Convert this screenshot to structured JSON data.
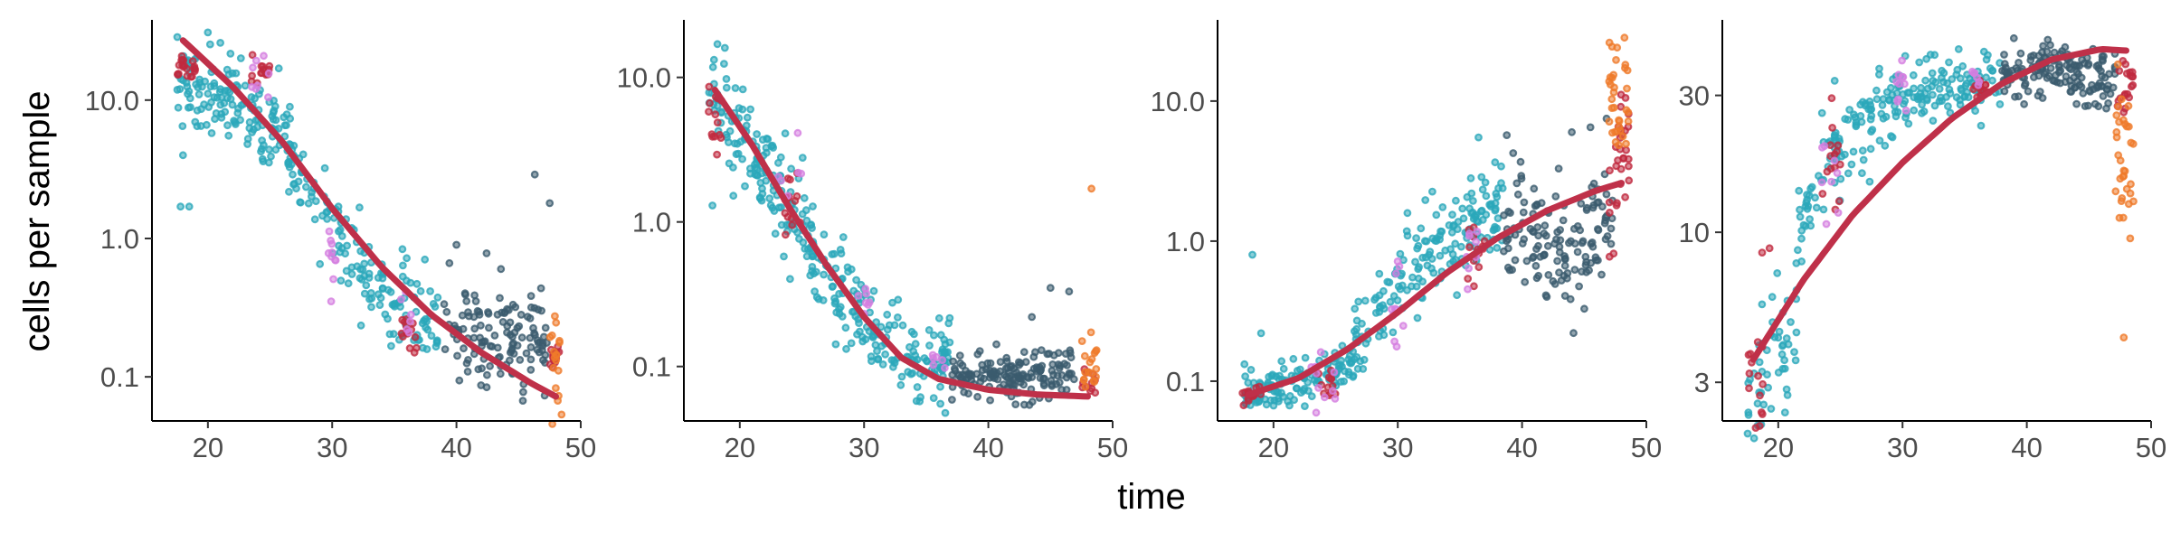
{
  "figure": {
    "xlabel": "time",
    "ylabel": "cells per sample"
  },
  "palette": {
    "teal": "#2aa7ba",
    "slate": "#3b5b6e",
    "crimson": "#c0293f",
    "orange": "#ef7a2a",
    "orchid": "#d57ee0",
    "fit": "#bf3049"
  },
  "chart_data": [
    {
      "type": "scatter",
      "scale_y": "log10",
      "xlim": [
        15.5,
        50
      ],
      "ylim": [
        0.048,
        38
      ],
      "x_ticks": [
        20,
        30,
        40,
        50
      ],
      "y_ticks": [
        0.1,
        1.0,
        10.0
      ],
      "y_tick_labels": [
        "0.1",
        "1.0",
        "10.0"
      ],
      "grid": false,
      "legend": "none",
      "point_groups": [
        {
          "x_range": [
            17.5,
            27
          ],
          "center": [
            14,
            12,
            9,
            6.5,
            4.8
          ],
          "spread": 0.16,
          "n": 150,
          "color": "teal",
          "outliers": [
            [
              17.8,
              1.7
            ],
            [
              18.5,
              1.7
            ],
            [
              18,
              4.0
            ]
          ]
        },
        {
          "x_range": [
            26,
            38.5
          ],
          "center": [
            4.2,
            2.2,
            0.9,
            0.45,
            0.3,
            0.22
          ],
          "spread": 0.17,
          "n": 150,
          "color": "teal"
        },
        {
          "x_range": [
            39,
            47.5
          ],
          "center": [
            0.22,
            0.2,
            0.18,
            0.16
          ],
          "spread": 0.18,
          "n": 130,
          "color": "slate",
          "outliers": [
            [
              46.3,
              2.9
            ],
            [
              47.5,
              1.8
            ],
            [
              40,
              0.9
            ]
          ]
        },
        {
          "x_range": [
            17.5,
            19
          ],
          "center": [
            17,
            17
          ],
          "spread": 0.06,
          "n": 20,
          "color": "crimson"
        },
        {
          "x_range": [
            23.5,
            25
          ],
          "center": [
            15,
            15
          ],
          "spread": 0.06,
          "n": 14,
          "color": "crimson"
        },
        {
          "x_range": [
            35.5,
            37
          ],
          "center": [
            0.22,
            0.22
          ],
          "spread": 0.07,
          "n": 14,
          "color": "crimson"
        },
        {
          "x_range": [
            47.5,
            48.5
          ],
          "center": [
            0.14,
            0.14
          ],
          "spread": 0.08,
          "n": 12,
          "color": "crimson"
        },
        {
          "x_range": [
            47.5,
            48.5
          ],
          "center": [
            0.14,
            0.14
          ],
          "spread": 0.2,
          "n": 18,
          "color": "orange"
        },
        {
          "x_range": [
            23.5,
            25
          ],
          "center": [
            12,
            12
          ],
          "spread": 0.1,
          "n": 8,
          "color": "orchid"
        },
        {
          "x_range": [
            29.5,
            30.5
          ],
          "center": [
            0.8,
            0.8
          ],
          "spread": 0.15,
          "n": 10,
          "color": "orchid"
        },
        {
          "x_range": [
            35.5,
            36.5
          ],
          "center": [
            0.26,
            0.26
          ],
          "spread": 0.12,
          "n": 6,
          "color": "orchid"
        }
      ],
      "fit_line": {
        "x": [
          18,
          22,
          26,
          30,
          34,
          38,
          42,
          46,
          48
        ],
        "y": [
          27,
          12.5,
          5.0,
          1.65,
          0.62,
          0.28,
          0.15,
          0.09,
          0.072
        ]
      }
    },
    {
      "type": "scatter",
      "scale_y": "log10",
      "xlim": [
        15.5,
        50
      ],
      "ylim": [
        0.042,
        25
      ],
      "x_ticks": [
        20,
        30,
        40,
        50
      ],
      "y_ticks": [
        0.1,
        1.0,
        10.0
      ],
      "y_tick_labels": [
        "0.1",
        "1.0",
        "10.0"
      ],
      "grid": false,
      "legend": "none",
      "point_groups": [
        {
          "x_range": [
            17.5,
            26
          ],
          "center": [
            7,
            4,
            2.3,
            1.2,
            0.7
          ],
          "spread": 0.17,
          "n": 140,
          "color": "teal",
          "outliers": [
            [
              17.8,
              1.3
            ],
            [
              18.2,
              17
            ],
            [
              18.8,
              16
            ]
          ]
        },
        {
          "x_range": [
            25.5,
            37
          ],
          "center": [
            0.6,
            0.35,
            0.2,
            0.14,
            0.11,
            0.1
          ],
          "spread": 0.15,
          "n": 170,
          "color": "teal"
        },
        {
          "x_range": [
            37,
            47
          ],
          "center": [
            0.095,
            0.085,
            0.085,
            0.09
          ],
          "spread": 0.08,
          "n": 160,
          "color": "slate",
          "outliers": [
            [
              45,
              0.35
            ],
            [
              46.5,
              0.33
            ],
            [
              43.5,
              0.22
            ]
          ]
        },
        {
          "x_range": [
            17.5,
            19
          ],
          "center": [
            4.5,
            4.5
          ],
          "spread": 0.15,
          "n": 14,
          "color": "crimson"
        },
        {
          "x_range": [
            23.5,
            25
          ],
          "center": [
            1.4,
            1.4
          ],
          "spread": 0.12,
          "n": 14,
          "color": "crimson"
        },
        {
          "x_range": [
            47.5,
            48.8
          ],
          "center": [
            0.08,
            0.08
          ],
          "spread": 0.05,
          "n": 12,
          "color": "crimson"
        },
        {
          "x_range": [
            47.5,
            48.8
          ],
          "center": [
            0.1,
            0.1
          ],
          "spread": 0.12,
          "n": 18,
          "color": "orange",
          "outliers": [
            [
              48.3,
              1.7
            ]
          ]
        },
        {
          "x_range": [
            23,
            25
          ],
          "center": [
            1.8,
            1.8
          ],
          "spread": 0.15,
          "n": 7,
          "color": "orchid"
        },
        {
          "x_range": [
            29.5,
            30.5
          ],
          "center": [
            0.25,
            0.25
          ],
          "spread": 0.12,
          "n": 8,
          "color": "orchid"
        },
        {
          "x_range": [
            35.5,
            36.5
          ],
          "center": [
            0.11,
            0.11
          ],
          "spread": 0.06,
          "n": 6,
          "color": "orchid"
        }
      ],
      "fit_line": {
        "x": [
          18,
          21,
          24,
          27,
          30,
          33,
          36,
          40,
          44,
          48
        ],
        "y": [
          8.2,
          3.4,
          1.25,
          0.5,
          0.22,
          0.115,
          0.082,
          0.069,
          0.064,
          0.062
        ]
      }
    },
    {
      "type": "scatter",
      "scale_y": "log10",
      "xlim": [
        15.5,
        50
      ],
      "ylim": [
        0.052,
        38
      ],
      "x_ticks": [
        20,
        30,
        40,
        50
      ],
      "y_ticks": [
        0.1,
        1.0,
        10.0
      ],
      "y_tick_labels": [
        "0.1",
        "1.0",
        "10.0"
      ],
      "grid": false,
      "legend": "none",
      "point_groups": [
        {
          "x_range": [
            17.5,
            27
          ],
          "center": [
            0.085,
            0.09,
            0.1,
            0.12,
            0.15
          ],
          "spread": 0.08,
          "n": 130,
          "color": "teal",
          "outliers": [
            [
              18.3,
              0.8
            ],
            [
              19,
              0.22
            ]
          ]
        },
        {
          "x_range": [
            26.5,
            38.5
          ],
          "center": [
            0.2,
            0.35,
            0.65,
            1.1,
            1.5,
            1.9
          ],
          "spread": 0.18,
          "n": 170,
          "color": "teal",
          "outliers": [
            [
              36.5,
              5.5
            ]
          ]
        },
        {
          "x_range": [
            38.5,
            47.3
          ],
          "center": [
            1.3,
            1.0,
            0.9,
            1.3
          ],
          "spread": 0.22,
          "n": 140,
          "color": "slate",
          "outliers": [
            [
              44,
              6
            ],
            [
              45.5,
              6.5
            ],
            [
              46.8,
              7.5
            ]
          ]
        },
        {
          "x_range": [
            17.5,
            19
          ],
          "center": [
            0.08,
            0.08
          ],
          "spread": 0.04,
          "n": 14,
          "color": "crimson"
        },
        {
          "x_range": [
            23.5,
            25
          ],
          "center": [
            0.1,
            0.1
          ],
          "spread": 0.06,
          "n": 12,
          "color": "crimson"
        },
        {
          "x_range": [
            35.5,
            37
          ],
          "center": [
            0.75,
            0.75
          ],
          "spread": 0.12,
          "n": 14,
          "color": "crimson"
        },
        {
          "x_range": [
            47,
            48.6
          ],
          "center": [
            2.5,
            4
          ],
          "spread": 0.28,
          "n": 30,
          "color": "crimson"
        },
        {
          "x_range": [
            47,
            48.6
          ],
          "center": [
            8,
            12
          ],
          "spread": 0.25,
          "n": 34,
          "color": "orange"
        },
        {
          "x_range": [
            23,
            25
          ],
          "center": [
            0.1,
            0.1
          ],
          "spread": 0.1,
          "n": 10,
          "color": "orchid"
        },
        {
          "x_range": [
            29.5,
            30.5
          ],
          "center": [
            0.35,
            0.35
          ],
          "spread": 0.15,
          "n": 10,
          "color": "orchid"
        },
        {
          "x_range": [
            35.5,
            36.5
          ],
          "center": [
            0.7,
            0.7
          ],
          "spread": 0.12,
          "n": 8,
          "color": "orchid"
        }
      ],
      "fit_line": {
        "x": [
          18,
          22,
          26,
          30,
          34,
          38,
          42,
          46,
          48
        ],
        "y": [
          0.08,
          0.105,
          0.17,
          0.31,
          0.6,
          1.05,
          1.65,
          2.3,
          2.6
        ]
      }
    },
    {
      "type": "scatter",
      "scale_y": "log10",
      "xlim": [
        15.5,
        50
      ],
      "ylim": [
        2.2,
        55
      ],
      "x_ticks": [
        20,
        30,
        40,
        50
      ],
      "y_ticks": [
        3,
        10,
        30
      ],
      "y_tick_labels": [
        "3",
        "10",
        "30"
      ],
      "grid": false,
      "legend": "none",
      "point_groups": [
        {
          "x_range": [
            17.5,
            21.5
          ],
          "center": [
            2.7,
            3.5,
            5
          ],
          "spread": 0.1,
          "n": 50,
          "color": "teal"
        },
        {
          "x_range": [
            21.5,
            38
          ],
          "center": [
            10,
            20,
            28,
            30,
            32,
            34
          ],
          "spread": 0.07,
          "n": 210,
          "color": "teal"
        },
        {
          "x_range": [
            38,
            47.3
          ],
          "center": [
            36,
            36,
            35,
            34
          ],
          "spread": 0.05,
          "n": 150,
          "color": "slate",
          "outliers": [
            [
              44,
              28
            ],
            [
              45.5,
              28
            ]
          ]
        },
        {
          "x_range": [
            17.5,
            19
          ],
          "center": [
            3.2,
            3.2
          ],
          "spread": 0.12,
          "n": 14,
          "color": "crimson",
          "outliers": [
            [
              18.7,
              8.5
            ],
            [
              19.3,
              8.8
            ]
          ]
        },
        {
          "x_range": [
            23.5,
            25
          ],
          "center": [
            17,
            17
          ],
          "spread": 0.1,
          "n": 14,
          "color": "crimson"
        },
        {
          "x_range": [
            35.5,
            37
          ],
          "center": [
            33,
            33
          ],
          "spread": 0.04,
          "n": 12,
          "color": "crimson"
        },
        {
          "x_range": [
            47,
            48.6
          ],
          "center": [
            30,
            35
          ],
          "spread": 0.05,
          "n": 20,
          "color": "crimson"
        },
        {
          "x_range": [
            47,
            48.6
          ],
          "center": [
            20,
            15
          ],
          "spread": 0.12,
          "n": 32,
          "color": "orange",
          "outliers": [
            [
              47.8,
              4.3
            ]
          ]
        },
        {
          "x_range": [
            23.5,
            25
          ],
          "center": [
            14,
            14
          ],
          "spread": 0.14,
          "n": 8,
          "color": "orchid"
        },
        {
          "x_range": [
            29.5,
            30.5
          ],
          "center": [
            35,
            35
          ],
          "spread": 0.06,
          "n": 10,
          "color": "orchid"
        },
        {
          "x_range": [
            35.5,
            36.5
          ],
          "center": [
            34,
            34
          ],
          "spread": 0.04,
          "n": 6,
          "color": "orchid"
        }
      ],
      "fit_line": {
        "x": [
          18,
          22,
          26,
          30,
          34,
          38,
          42,
          46,
          48
        ],
        "y": [
          3.6,
          6.8,
          11.5,
          17.5,
          25,
          33,
          40,
          43.5,
          43
        ]
      }
    }
  ]
}
